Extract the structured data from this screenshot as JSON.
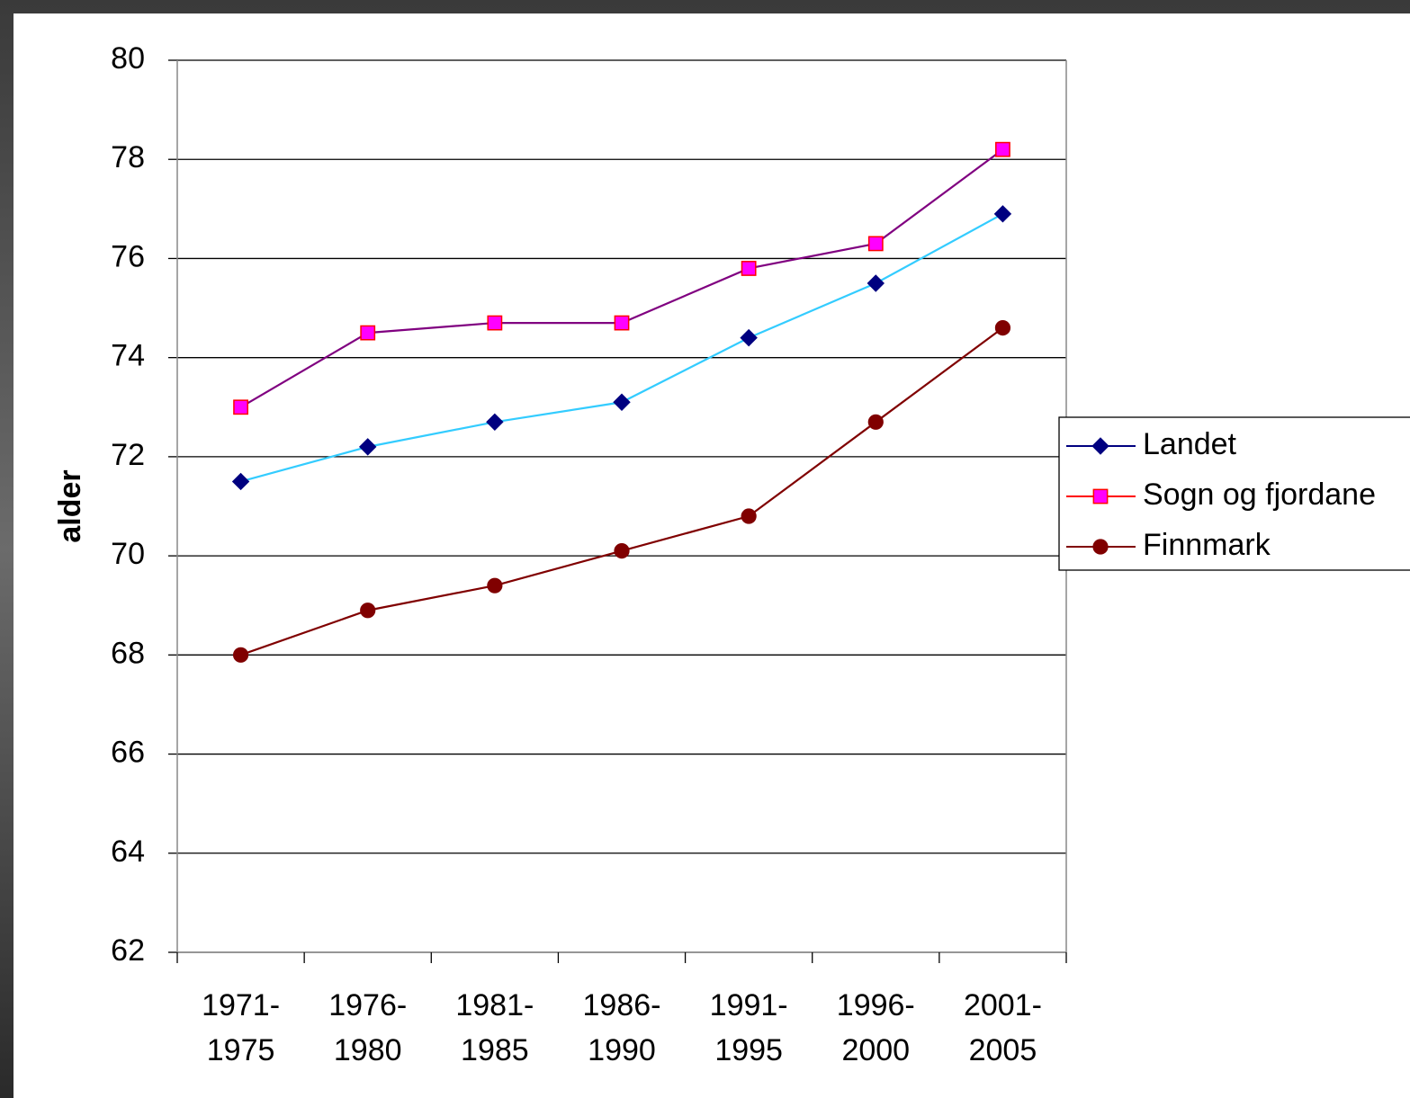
{
  "chart_data": {
    "type": "line",
    "y_label": "alder",
    "categories": [
      "1971-1975",
      "1976-1980",
      "1981-1985",
      "1986-1990",
      "1991-1995",
      "1996-2000",
      "2001-2005"
    ],
    "series": [
      {
        "name": "Landet",
        "color": "#000080",
        "line_color": "#33ccff",
        "marker": "diamond",
        "values": [
          71.5,
          72.2,
          72.7,
          73.1,
          74.4,
          75.5,
          76.9
        ]
      },
      {
        "name": "Sogn og fjordane",
        "color": "#ff0000",
        "line_color": "#800080",
        "marker_fill": "#ff00ff",
        "marker": "square",
        "values": [
          73.0,
          74.5,
          74.7,
          74.7,
          75.8,
          76.3,
          78.2
        ]
      },
      {
        "name": "Finnmark",
        "color": "#800000",
        "line_color": "#800000",
        "marker": "circle",
        "values": [
          68.0,
          68.9,
          69.4,
          70.1,
          70.8,
          72.7,
          74.6
        ]
      }
    ],
    "ylim": [
      62,
      80
    ],
    "yticks": [
      62,
      64,
      66,
      68,
      70,
      72,
      74,
      76,
      78,
      80
    ],
    "grid": true,
    "legend": "right"
  }
}
